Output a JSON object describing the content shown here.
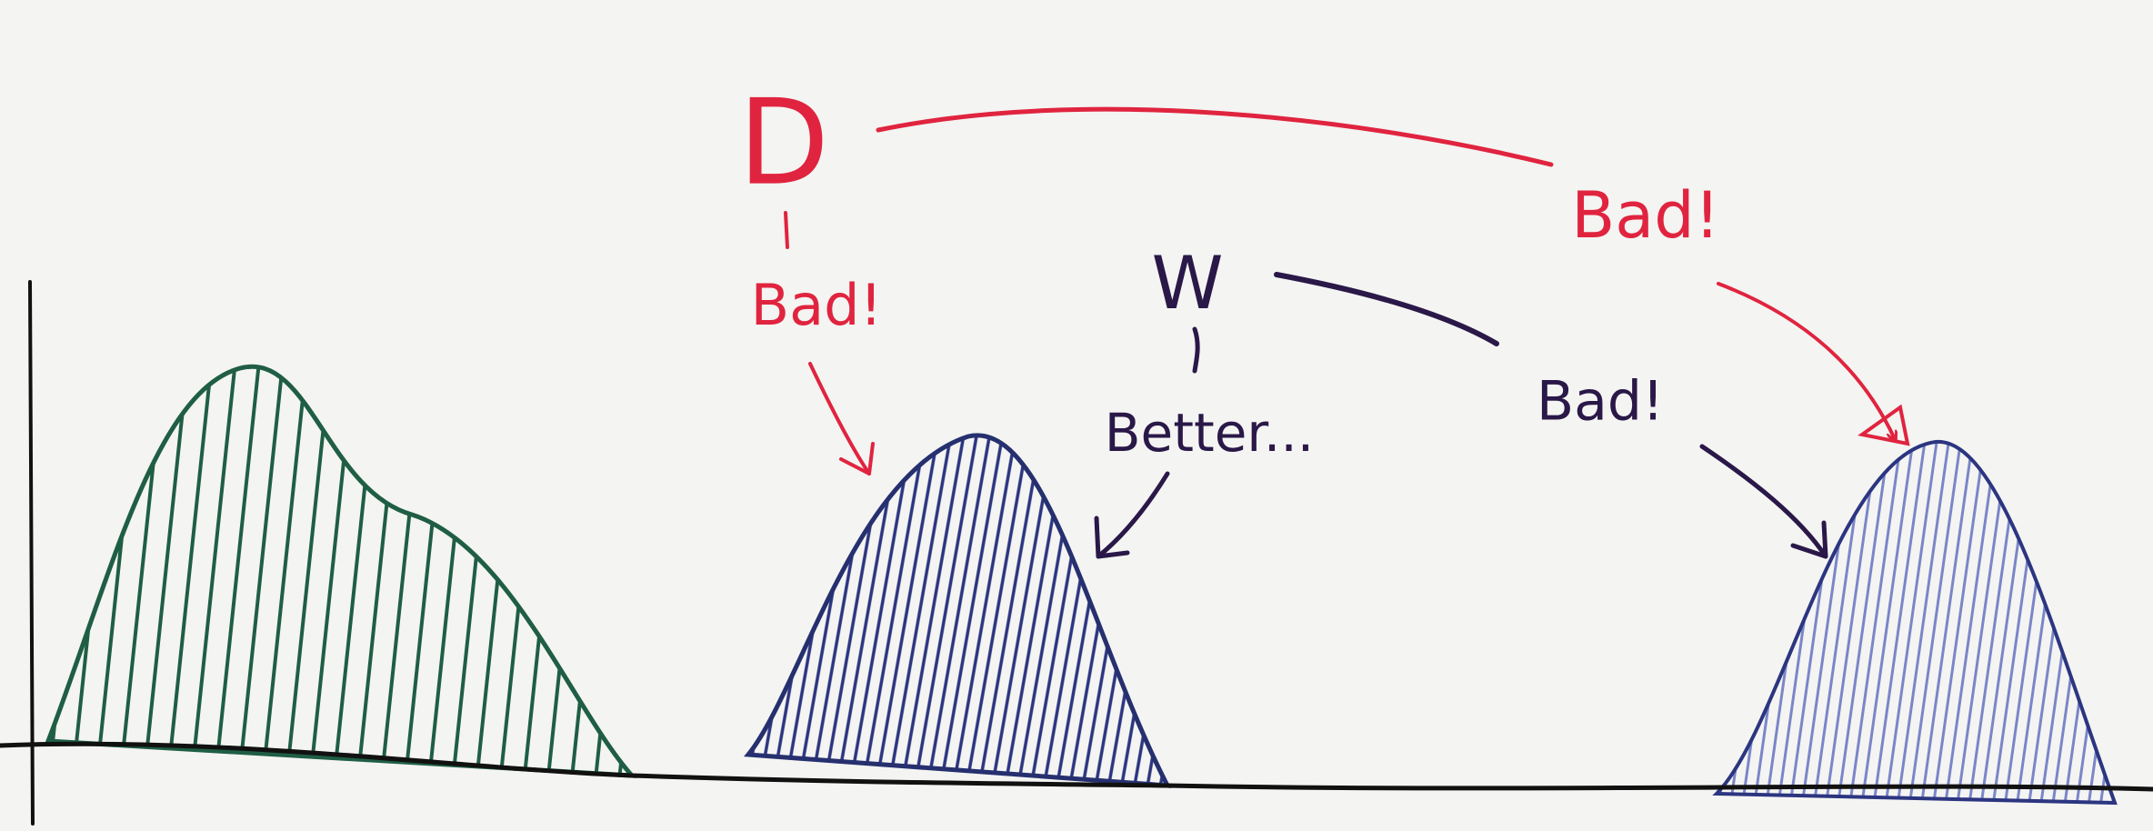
{
  "labels": {
    "d": "D",
    "d_bad_left": "Bad!",
    "d_bad_right": "Bad!",
    "w": "W",
    "w_better": "Better...",
    "w_bad": "Bad!"
  }
}
